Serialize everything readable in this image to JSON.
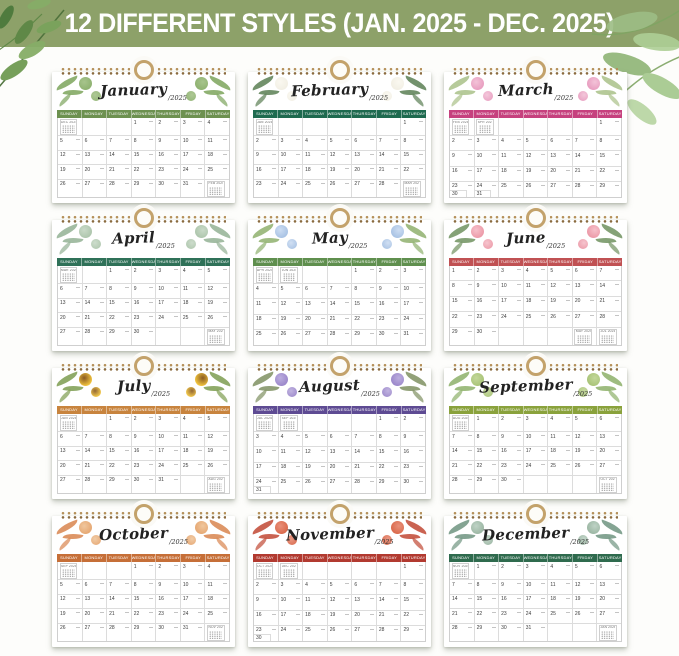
{
  "banner": {
    "text": "12 DIFFERENT STYLES (JAN. 2025 - DEC. 2025)",
    "bg_color": "#8da169",
    "text_color": "#ffffff"
  },
  "weekdays": [
    "SUNDAY",
    "MONDAY",
    "TUESDAY",
    "WEDNESDAY",
    "THURSDAY",
    "FRIDAY",
    "SATURDAY"
  ],
  "year": "2025",
  "months": [
    {
      "name": "January",
      "year": "2025",
      "flower": "green-leaves",
      "bar_color": "#6d9150",
      "bloom_color": "#8fb271",
      "bloom_core": "#a7c48c",
      "leaf_color": "#7ca45c",
      "grid": [
        [
          "m:DEC 2024",
          "",
          "",
          "1",
          "2",
          "3",
          "4"
        ],
        [
          "5",
          "6",
          "7",
          "8",
          "9",
          "10",
          "11"
        ],
        [
          "12",
          "13",
          "14",
          "15",
          "16",
          "17",
          "18"
        ],
        [
          "19",
          "20",
          "21",
          "22",
          "23",
          "24",
          "25"
        ],
        [
          "26",
          "27",
          "28",
          "29",
          "30",
          "31",
          "m:FEB 2025"
        ]
      ]
    },
    {
      "name": "February",
      "year": "2025",
      "flower": "white-roses",
      "bar_color": "#1e6a4f",
      "bloom_color": "#f2efe4",
      "bloom_core": "#faf8f0",
      "leaf_color": "#5b7f54",
      "grid": [
        [
          "m:JAN 2025",
          "",
          "",
          "",
          "",
          "",
          "1"
        ],
        [
          "2",
          "3",
          "4",
          "5",
          "6",
          "7",
          "8"
        ],
        [
          "9",
          "10",
          "11",
          "12",
          "13",
          "14",
          "15"
        ],
        [
          "16",
          "17",
          "18",
          "19",
          "20",
          "21",
          "22"
        ],
        [
          "23",
          "24",
          "25",
          "26",
          "27",
          "28",
          "m:MAR 2025"
        ]
      ]
    },
    {
      "name": "March",
      "year": "2025",
      "flower": "pink-tulips",
      "bar_color": "#c6417e",
      "bloom_color": "#e89ec0",
      "bloom_core": "#f3c3d8",
      "leaf_color": "#a9c188",
      "grid": [
        [
          "m:FEB 2025",
          "m:APR 2025",
          "",
          "",
          "",
          "",
          "1"
        ],
        [
          "2",
          "3",
          "4",
          "5",
          "6",
          "7",
          "8"
        ],
        [
          "9",
          "10",
          "11",
          "12",
          "13",
          "14",
          "15"
        ],
        [
          "16",
          "17",
          "18",
          "19",
          "20",
          "21",
          "22"
        ],
        [
          "23|30",
          "24|31",
          "25",
          "26",
          "27",
          "28",
          "29"
        ]
      ]
    },
    {
      "name": "April",
      "year": "2025",
      "flower": "eucalyptus-berries",
      "bar_color": "#2f7158",
      "bloom_color": "#aec6ad",
      "bloom_core": "#c9dac8",
      "leaf_color": "#93b194",
      "grid": [
        [
          "m:MAR 2025",
          "",
          "1",
          "2",
          "3",
          "4",
          "5"
        ],
        [
          "6",
          "7",
          "8",
          "9",
          "10",
          "11",
          "12"
        ],
        [
          "13",
          "14",
          "15",
          "16",
          "17",
          "18",
          "19"
        ],
        [
          "20",
          "21",
          "22",
          "23",
          "24",
          "25",
          "26"
        ],
        [
          "27",
          "28",
          "29",
          "30",
          "",
          "",
          "m:MAY 2025"
        ]
      ]
    },
    {
      "name": "May",
      "year": "2025",
      "flower": "blue-lily-of-the-valley",
      "bar_color": "#5f8f4e",
      "bloom_color": "#a9c3e4",
      "bloom_core": "#cdddf2",
      "leaf_color": "#8fb06d",
      "grid": [
        [
          "m:APR 2025",
          "m:JUN 2025",
          "",
          "",
          "1",
          "2",
          "3"
        ],
        [
          "4",
          "5",
          "6",
          "7",
          "8",
          "9",
          "10"
        ],
        [
          "11",
          "12",
          "13",
          "14",
          "15",
          "16",
          "17"
        ],
        [
          "18",
          "19",
          "20",
          "21",
          "22",
          "23",
          "24"
        ],
        [
          "25",
          "26",
          "27",
          "28",
          "29",
          "30",
          "31"
        ]
      ]
    },
    {
      "name": "June",
      "year": "2025",
      "flower": "pink-carnations",
      "bar_color": "#c05153",
      "bloom_color": "#ec9aa8",
      "bloom_core": "#f6c0ca",
      "leaf_color": "#70925f",
      "grid": [
        [
          "1",
          "2",
          "3",
          "4",
          "5",
          "6",
          "7"
        ],
        [
          "8",
          "9",
          "10",
          "11",
          "12",
          "13",
          "14"
        ],
        [
          "15",
          "16",
          "17",
          "18",
          "19",
          "20",
          "21"
        ],
        [
          "22",
          "23",
          "24",
          "25",
          "26",
          "27",
          "28"
        ],
        [
          "29",
          "30",
          "",
          "",
          "",
          "m:MAY 2025",
          "m:JUL 2025"
        ]
      ]
    },
    {
      "name": "July",
      "year": "2025",
      "flower": "sunflowers",
      "bar_color": "#c8843e",
      "bloom_color": "#f2c53e",
      "bloom_core": "#8a5a23",
      "leaf_color": "#7d9c50",
      "grid": [
        [
          "m:JUN 2025",
          "",
          "1",
          "2",
          "3",
          "4",
          "5"
        ],
        [
          "6",
          "7",
          "8",
          "9",
          "10",
          "11",
          "12"
        ],
        [
          "13",
          "14",
          "15",
          "16",
          "17",
          "18",
          "19"
        ],
        [
          "20",
          "21",
          "22",
          "23",
          "24",
          "25",
          "26"
        ],
        [
          "27",
          "28",
          "29",
          "30",
          "31",
          "",
          "m:AUG 2025"
        ]
      ]
    },
    {
      "name": "August",
      "year": "2025",
      "flower": "lavender",
      "bar_color": "#5e4b93",
      "bloom_color": "#9c88cb",
      "bloom_core": "#bcaede",
      "leaf_color": "#7f9061",
      "grid": [
        [
          "m:JUL 2025",
          "m:SEP 2025",
          "",
          "",
          "",
          "1",
          "2"
        ],
        [
          "3",
          "4",
          "5",
          "6",
          "7",
          "8",
          "9"
        ],
        [
          "10",
          "11",
          "12",
          "13",
          "14",
          "15",
          "16"
        ],
        [
          "17",
          "18",
          "19",
          "20",
          "21",
          "22",
          "23"
        ],
        [
          "24|31",
          "25",
          "26",
          "27",
          "28",
          "29",
          "30"
        ]
      ]
    },
    {
      "name": "September",
      "year": "2025",
      "flower": "ginkgo-leaves",
      "bar_color": "#8aa23c",
      "bloom_color": "#a9c478",
      "bloom_core": "#c3d79a",
      "leaf_color": "#8db06a",
      "grid": [
        [
          "m:AUG 2025",
          "1",
          "2",
          "3",
          "4",
          "5",
          "6"
        ],
        [
          "7",
          "8",
          "9",
          "10",
          "11",
          "12",
          "13"
        ],
        [
          "14",
          "15",
          "16",
          "17",
          "18",
          "19",
          "20"
        ],
        [
          "21",
          "22",
          "23",
          "24",
          "25",
          "26",
          "27"
        ],
        [
          "28",
          "29",
          "30",
          "",
          "",
          "",
          "m:OCT 2025"
        ]
      ]
    },
    {
      "name": "October",
      "year": "2025",
      "flower": "autumn-leaves",
      "bar_color": "#c66f38",
      "bloom_color": "#e6a873",
      "bloom_core": "#f0c79e",
      "leaf_color": "#d8854f",
      "grid": [
        [
          "m:SEP 2025",
          "",
          "",
          "1",
          "2",
          "3",
          "4"
        ],
        [
          "5",
          "6",
          "7",
          "8",
          "9",
          "10",
          "11"
        ],
        [
          "12",
          "13",
          "14",
          "15",
          "16",
          "17",
          "18"
        ],
        [
          "19",
          "20",
          "21",
          "22",
          "23",
          "24",
          "25"
        ],
        [
          "26",
          "27",
          "28",
          "29",
          "30",
          "31",
          "m:NOV 2025"
        ]
      ]
    },
    {
      "name": "November",
      "year": "2025",
      "flower": "red-maple-leaves",
      "bar_color": "#b23a30",
      "bloom_color": "#da6a4c",
      "bloom_core": "#e9907a",
      "leaf_color": "#c14834",
      "grid": [
        [
          "m:OCT 2025",
          "m:DEC 2025",
          "",
          "",
          "",
          "",
          "1"
        ],
        [
          "2",
          "3",
          "4",
          "5",
          "6",
          "7",
          "8"
        ],
        [
          "9",
          "10",
          "11",
          "12",
          "13",
          "14",
          "15"
        ],
        [
          "16",
          "17",
          "18",
          "19",
          "20",
          "21",
          "22"
        ],
        [
          "23|30",
          "24",
          "25",
          "26",
          "27",
          "28",
          "29"
        ]
      ]
    },
    {
      "name": "December",
      "year": "2025",
      "flower": "eucalyptus",
      "bar_color": "#2f6b4e",
      "bloom_color": "#9cb7a4",
      "bloom_core": "#bfd3c6",
      "leaf_color": "#6f9480",
      "grid": [
        [
          "m:NOV 2025",
          "1",
          "2",
          "3",
          "4",
          "5",
          "6"
        ],
        [
          "7",
          "8",
          "9",
          "10",
          "11",
          "12",
          "13"
        ],
        [
          "14",
          "15",
          "16",
          "17",
          "18",
          "19",
          "20"
        ],
        [
          "21",
          "22",
          "23",
          "24",
          "25",
          "26",
          "27"
        ],
        [
          "28",
          "29",
          "30",
          "31",
          "",
          "",
          "m:JAN 2026"
        ]
      ]
    }
  ]
}
